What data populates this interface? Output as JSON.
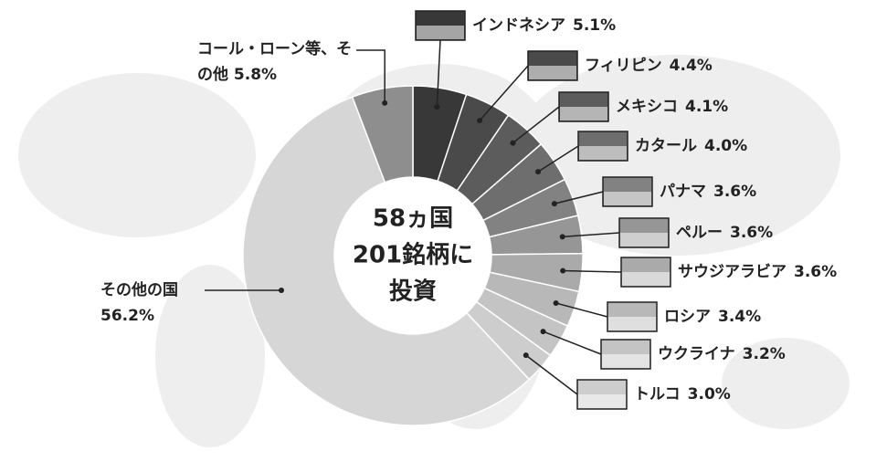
{
  "chart_data": {
    "type": "donut",
    "center_label": [
      "58ヵ国",
      "201銘柄に",
      "投資"
    ],
    "categories": [
      "インドネシア",
      "フィリピン",
      "メキシコ",
      "カタール",
      "パナマ",
      "ペルー",
      "サウジアラビア",
      "ロシア",
      "ウクライナ",
      "トルコ",
      "その他の国",
      "コール・ローン等、その他"
    ],
    "values": [
      5.1,
      4.4,
      4.1,
      4.0,
      3.6,
      3.6,
      3.6,
      3.4,
      3.2,
      3.0,
      56.2,
      5.8
    ],
    "value_labels": [
      "5.1%",
      "4.4%",
      "4.1%",
      "4.0%",
      "3.6%",
      "3.6%",
      "3.6%",
      "3.4%",
      "3.2%",
      "3.0%",
      "56.2%",
      "5.8%"
    ],
    "colors": [
      "#383838",
      "#4a4a4a",
      "#5c5c5c",
      "#6e6e6e",
      "#828282",
      "#969696",
      "#aaaaaa",
      "#b8b8b8",
      "#c4c4c4",
      "#cdcdcd",
      "#d6d6d6",
      "#8e8e8e"
    ]
  }
}
